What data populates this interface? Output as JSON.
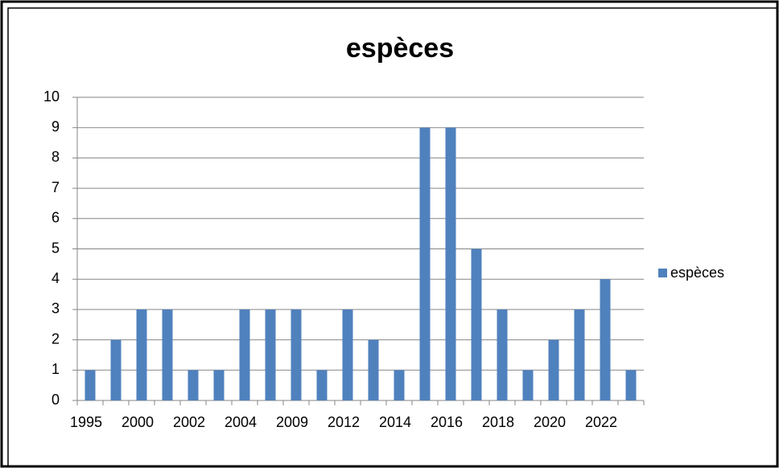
{
  "chart_data": {
    "type": "bar",
    "title": "espèces",
    "categories": [
      "1995",
      null,
      "2000",
      null,
      "2002",
      null,
      "2004",
      null,
      "2009",
      null,
      "2012",
      null,
      "2014",
      null,
      "2016",
      null,
      "2018",
      null,
      "2020",
      null,
      "2022",
      null
    ],
    "series": [
      {
        "name": "espèces",
        "color": "#4f81bd",
        "values": [
          1,
          2,
          3,
          3,
          1,
          1,
          3,
          3,
          3,
          1,
          3,
          2,
          1,
          9,
          9,
          5,
          3,
          1,
          2,
          3,
          4,
          1
        ]
      }
    ],
    "ylim": [
      0,
      10
    ],
    "yticks": [
      0,
      1,
      2,
      3,
      4,
      5,
      6,
      7,
      8,
      9,
      10
    ],
    "grid": true,
    "legend": "right"
  }
}
